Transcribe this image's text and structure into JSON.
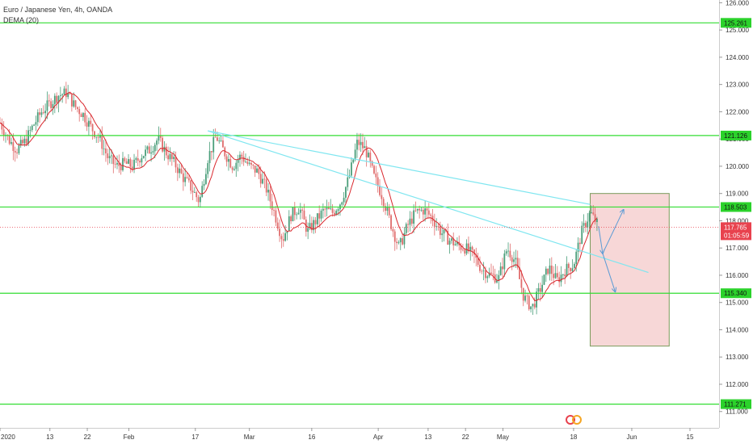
{
  "legend": {
    "symbol": "Euro / Japanese Yen, 4h, OANDA",
    "indicator": "DEMA (20)"
  },
  "colors": {
    "level_line": "#33dd33",
    "level_tag": "#2bd22b",
    "trend_line": "#7fe6f0",
    "arrow": "#5b9bd5",
    "candle_up": "#4a9e7a",
    "candle_down": "#e06d6d",
    "dema": "#d9262c",
    "price_tag": "#e8424e",
    "box_fill": "#f7d7d7",
    "box_border": "#7a9a5a"
  },
  "chart_data": {
    "type": "candlestick",
    "y_axis": {
      "range": [
        110.4,
        126.1
      ],
      "ticks": [
        "126.000",
        "125.000",
        "124.000",
        "123.000",
        "122.000",
        "121.000",
        "120.000",
        "119.000",
        "118.000",
        "117.000",
        "116.000",
        "115.000",
        "114.000",
        "113.000",
        "112.000",
        "111.000"
      ]
    },
    "x_axis": {
      "range": [
        "2020-01-01",
        "2020-06-22"
      ],
      "ticks": [
        {
          "label": "2020",
          "date": "2020-01-01"
        },
        {
          "label": "13",
          "date": "2020-01-13"
        },
        {
          "label": "22",
          "date": "2020-01-22"
        },
        {
          "label": "Feb",
          "date": "2020-02-01"
        },
        {
          "label": "17",
          "date": "2020-02-17"
        },
        {
          "label": "Mar",
          "date": "2020-03-01"
        },
        {
          "label": "16",
          "date": "2020-03-16"
        },
        {
          "label": "Apr",
          "date": "2020-04-01"
        },
        {
          "label": "13",
          "date": "2020-04-13"
        },
        {
          "label": "22",
          "date": "2020-04-22"
        },
        {
          "label": "May",
          "date": "2020-05-01"
        },
        {
          "label": "18",
          "date": "2020-05-18"
        },
        {
          "label": "Jun",
          "date": "2020-06-01"
        },
        {
          "label": "15",
          "date": "2020-06-15"
        }
      ]
    },
    "levels": [
      {
        "label": "125.261",
        "value": 125.261
      },
      {
        "label": "121.126",
        "value": 121.126
      },
      {
        "label": "118.503",
        "value": 118.503
      },
      {
        "label": "115.340",
        "value": 115.34
      },
      {
        "label": "111.271",
        "value": 111.271
      }
    ],
    "current_price": {
      "label": "117.765",
      "value": 117.765,
      "countdown": "01:05:59"
    },
    "trend_lines": [
      {
        "from": [
          "2020-02-20",
          121.3
        ],
        "to": [
          "2020-05-22",
          118.6
        ]
      },
      {
        "from": [
          "2020-02-20",
          121.3
        ],
        "to": [
          "2020-06-05",
          116.1
        ]
      }
    ],
    "projection_box": {
      "from": [
        "2020-05-22",
        119.0
      ],
      "to": [
        "2020-06-10",
        113.4
      ]
    },
    "projection_arrows": [
      {
        "from": [
          "2020-05-24",
          117.8
        ],
        "to": [
          "2020-05-25",
          116.8
        ]
      },
      {
        "from": [
          "2020-05-25",
          116.8
        ],
        "to": [
          "2020-05-30",
          118.4
        ]
      },
      {
        "from": [
          "2020-05-25",
          116.8
        ],
        "to": [
          "2020-05-28",
          115.4
        ]
      }
    ],
    "price_path": [
      [
        "2020-01-01",
        121.6
      ],
      [
        "2020-01-03",
        121.0
      ],
      [
        "2020-01-05",
        120.6
      ],
      [
        "2020-01-07",
        120.9
      ],
      [
        "2020-01-09",
        121.5
      ],
      [
        "2020-01-11",
        122.0
      ],
      [
        "2020-01-13",
        122.3
      ],
      [
        "2020-01-15",
        122.6
      ],
      [
        "2020-01-17",
        122.7
      ],
      [
        "2020-01-19",
        122.2
      ],
      [
        "2020-01-21",
        121.9
      ],
      [
        "2020-01-23",
        121.4
      ],
      [
        "2020-01-25",
        121.0
      ],
      [
        "2020-01-27",
        120.3
      ],
      [
        "2020-01-29",
        120.0
      ],
      [
        "2020-01-31",
        120.1
      ],
      [
        "2020-02-02",
        120.0
      ],
      [
        "2020-02-04",
        120.4
      ],
      [
        "2020-02-06",
        120.6
      ],
      [
        "2020-02-08",
        121.0
      ],
      [
        "2020-02-10",
        120.5
      ],
      [
        "2020-02-12",
        120.1
      ],
      [
        "2020-02-14",
        119.6
      ],
      [
        "2020-02-16",
        119.2
      ],
      [
        "2020-02-18",
        118.7
      ],
      [
        "2020-02-20",
        120.3
      ],
      [
        "2020-02-22",
        121.1
      ],
      [
        "2020-02-24",
        120.5
      ],
      [
        "2020-02-26",
        120.0
      ],
      [
        "2020-02-28",
        120.4
      ],
      [
        "2020-03-01",
        120.0
      ],
      [
        "2020-03-03",
        119.8
      ],
      [
        "2020-03-05",
        119.2
      ],
      [
        "2020-03-07",
        118.3
      ],
      [
        "2020-03-09",
        117.3
      ],
      [
        "2020-03-11",
        118.2
      ],
      [
        "2020-03-13",
        118.5
      ],
      [
        "2020-03-15",
        117.6
      ],
      [
        "2020-03-17",
        118.0
      ],
      [
        "2020-03-19",
        118.4
      ],
      [
        "2020-03-21",
        118.3
      ],
      [
        "2020-03-23",
        118.7
      ],
      [
        "2020-03-25",
        119.6
      ],
      [
        "2020-03-27",
        120.9
      ],
      [
        "2020-03-29",
        120.6
      ],
      [
        "2020-03-31",
        119.6
      ],
      [
        "2020-04-02",
        118.9
      ],
      [
        "2020-04-04",
        117.9
      ],
      [
        "2020-04-06",
        117.0
      ],
      [
        "2020-04-08",
        117.8
      ],
      [
        "2020-04-10",
        118.3
      ],
      [
        "2020-04-12",
        118.4
      ],
      [
        "2020-04-14",
        118.1
      ],
      [
        "2020-04-16",
        117.6
      ],
      [
        "2020-04-18",
        117.3
      ],
      [
        "2020-04-20",
        117.1
      ],
      [
        "2020-04-22",
        117.0
      ],
      [
        "2020-04-24",
        116.7
      ],
      [
        "2020-04-26",
        116.2
      ],
      [
        "2020-04-28",
        116.0
      ],
      [
        "2020-04-30",
        115.9
      ],
      [
        "2020-05-02",
        117.0
      ],
      [
        "2020-05-04",
        116.5
      ],
      [
        "2020-05-06",
        115.2
      ],
      [
        "2020-05-08",
        114.8
      ],
      [
        "2020-05-10",
        115.5
      ],
      [
        "2020-05-12",
        116.3
      ],
      [
        "2020-05-14",
        115.8
      ],
      [
        "2020-05-16",
        116.2
      ],
      [
        "2020-05-18",
        116.4
      ],
      [
        "2020-05-20",
        117.6
      ],
      [
        "2020-05-22",
        118.3
      ],
      [
        "2020-05-24",
        117.8
      ]
    ]
  }
}
